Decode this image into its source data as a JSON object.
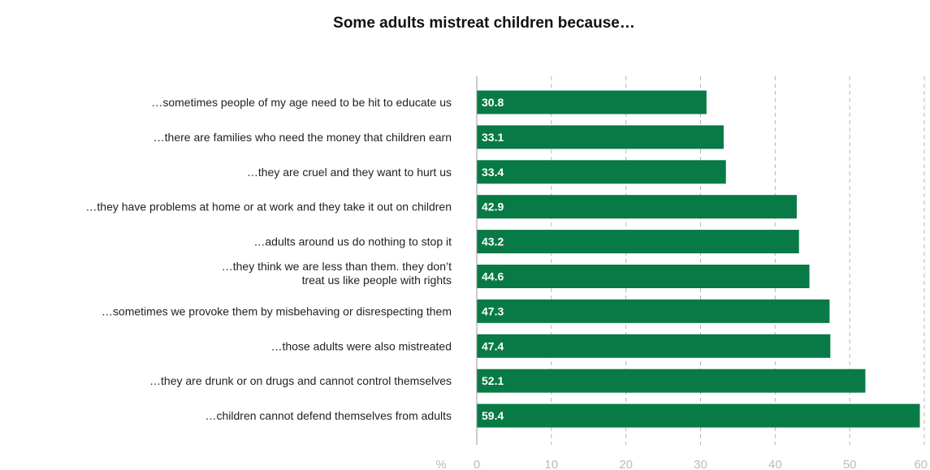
{
  "chart_data": {
    "type": "bar",
    "orientation": "horizontal",
    "title": "Some adults mistreat children because…",
    "unit_label": "%",
    "categories": [
      "…sometimes people of my age need to be hit to educate us",
      "…there are families who need the money that children earn",
      "…they are cruel and they want to hurt us",
      "…they have problems at home or at work and they take it out on children",
      "…adults around us do nothing to stop it",
      "…they think we are less than them. they don’t treat us like people with rights",
      "…sometimes we provoke them by misbehaving or disrespecting them",
      "…those adults were also mistreated",
      "…they are drunk or on drugs and cannot control themselves",
      "…children cannot defend themselves from adults"
    ],
    "category_lines": [
      [
        "…sometimes people of my age need to be hit to educate us"
      ],
      [
        "…there are families who need the money that children earn"
      ],
      [
        "…they are cruel and they want to hurt us"
      ],
      [
        "…they have problems at home or at work and they take it out on children"
      ],
      [
        "…adults around us do nothing to stop it"
      ],
      [
        "…they think we are less than them. they don’t",
        "treat us like people with rights"
      ],
      [
        "…sometimes we provoke them by misbehaving or disrespecting them"
      ],
      [
        "…those adults were also mistreated"
      ],
      [
        "…they are drunk or on drugs and cannot control themselves"
      ],
      [
        "…children cannot defend themselves from adults"
      ]
    ],
    "values": [
      30.8,
      33.1,
      33.4,
      42.9,
      43.2,
      44.6,
      47.3,
      47.4,
      52.1,
      59.4
    ],
    "value_labels": [
      "30.8",
      "33.1",
      "33.4",
      "42.9",
      "43.2",
      "44.6",
      "47.3",
      "47.4",
      "52.1",
      "59.4"
    ],
    "xlim": [
      0,
      60
    ],
    "xticks": [
      0,
      10,
      20,
      30,
      40,
      50,
      60
    ],
    "xtick_labels": [
      "0",
      "10",
      "20",
      "30",
      "40",
      "50",
      "60"
    ],
    "grid": "vertical dashed",
    "bar_color": "#087a45"
  }
}
